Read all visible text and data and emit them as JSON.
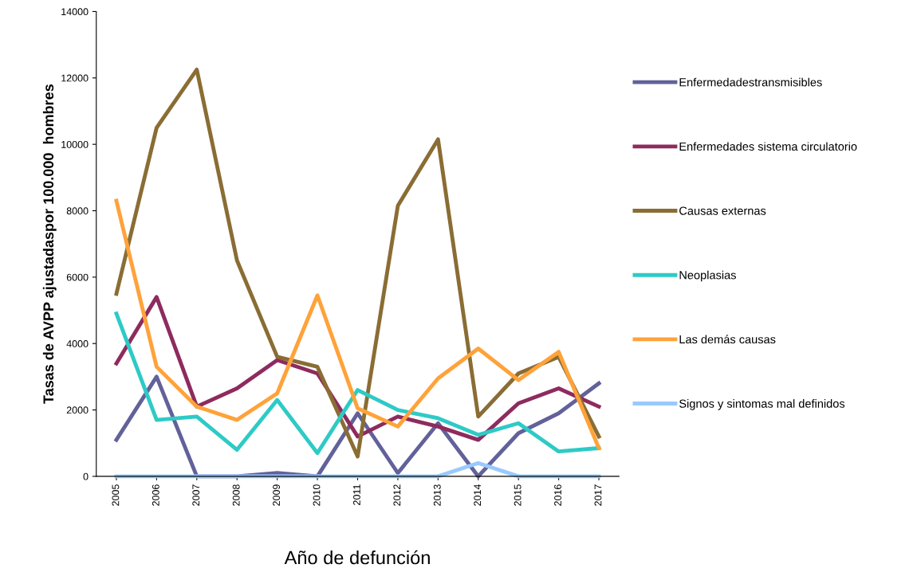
{
  "chart_data": {
    "type": "line",
    "xlabel": "Año de defunción",
    "ylabel": "Tasas de AVPP ajustadaspor 100.000  hombres",
    "categories": [
      "2005",
      "2006",
      "2007",
      "2008",
      "2009",
      "2010",
      "2011",
      "2012",
      "2013",
      "2014",
      "2015",
      "2016",
      "2017"
    ],
    "series": [
      {
        "name": "Enfermedadestransmisibles",
        "color": "#62619a",
        "values": [
          1100,
          3000,
          0,
          0,
          100,
          0,
          1900,
          100,
          1600,
          0,
          1300,
          1900,
          2800
        ]
      },
      {
        "name": "Enfermedades sistema circulatorio",
        "color": "#8e2b5e",
        "values": [
          3400,
          5400,
          2100,
          2650,
          3500,
          3100,
          1200,
          1800,
          1500,
          1100,
          2200,
          2650,
          2100
        ]
      },
      {
        "name": "Causas externas",
        "color": "#8a6d34",
        "values": [
          5500,
          10500,
          12250,
          6500,
          3600,
          3300,
          600,
          8150,
          10150,
          1800,
          3100,
          3600,
          1200
        ]
      },
      {
        "name": "Neoplasias",
        "color": "#2ecac6",
        "values": [
          4900,
          1700,
          1800,
          800,
          2300,
          700,
          2600,
          2000,
          1750,
          1250,
          1600,
          750,
          850
        ]
      },
      {
        "name": "Las demás causas",
        "color": "#ffa23a",
        "values": [
          8300,
          3300,
          2100,
          1700,
          2500,
          5450,
          2050,
          1500,
          2950,
          3850,
          2900,
          3750,
          850
        ]
      },
      {
        "name": "Signos y sintomas mal definidos",
        "color": "#99c9ff",
        "values": [
          0,
          0,
          0,
          0,
          0,
          0,
          0,
          0,
          0,
          400,
          0,
          0,
          0
        ]
      }
    ],
    "ylim": [
      0,
      14000
    ],
    "yticks": [
      0,
      2000,
      4000,
      6000,
      8000,
      10000,
      12000,
      14000
    ],
    "grid": false,
    "legend": "right",
    "marker": "none",
    "line_style": "solid"
  }
}
